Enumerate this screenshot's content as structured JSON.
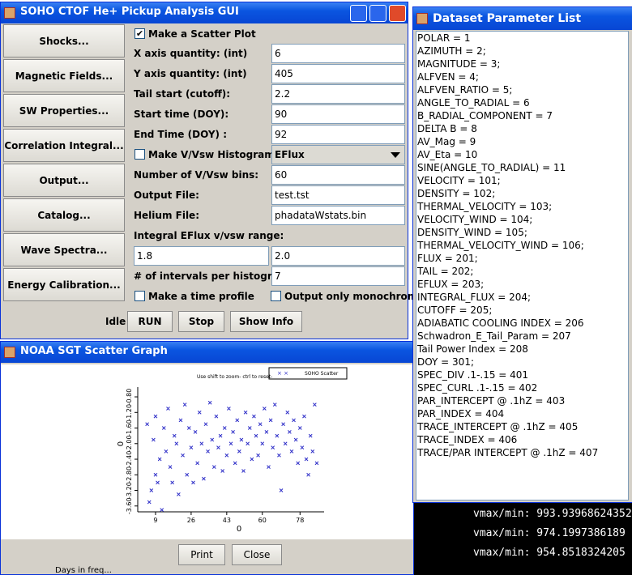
{
  "main_window": {
    "title": "SOHO CTOF He+ Pickup Analysis GUI",
    "side_buttons": [
      "Shocks...",
      "Magnetic Fields...",
      "SW Properties...",
      "Correlation Integral...",
      "Output...",
      "Catalog...",
      "Wave Spectra...",
      "Energy Calibration..."
    ],
    "scatter_checkbox": "Make a Scatter Plot",
    "fields_top": [
      {
        "label": "X axis quantity: (int)",
        "value": "6"
      },
      {
        "label": "Y axis quantity: (int)",
        "value": "405"
      },
      {
        "label": "Tail start (cutoff):",
        "value": "2.2"
      },
      {
        "label": "Start time (DOY):",
        "value": "90"
      },
      {
        "label": "End Time (DOY) :",
        "value": "92"
      }
    ],
    "histogram_checkbox": "Make V/Vsw Histogram",
    "histogram_dropdown": "EFlux",
    "fields_mid": [
      {
        "label": "Number of V/Vsw bins:",
        "value": "60"
      },
      {
        "label": "Output File:",
        "value": "test.tst"
      },
      {
        "label": "Helium File:",
        "value": "phadataWstats.bin"
      }
    ],
    "range_label": "Integral EFlux v/vsw range:",
    "range_values": [
      "1.8",
      "2.0"
    ],
    "intervals": {
      "label": "# of intervals per histogram:",
      "value": "7"
    },
    "time_profile_checkbox": "Make a time profile",
    "monochrome_checkbox": "Output only monochrome",
    "status": "Idle",
    "action_buttons": [
      "RUN",
      "Stop",
      "Show Info"
    ]
  },
  "scatter_window": {
    "title": "NOAA SGT Scatter Graph",
    "hint": "Use shift to zoom- ctrl to reset-",
    "legend": "SOHO Scatter",
    "x_label": "0",
    "y_label": "0",
    "xlim": [
      0.5,
      89.5
    ],
    "ylim": [
      -3.75,
      -0.55
    ],
    "xticks": [
      9,
      26,
      43,
      60,
      78
    ],
    "yticks": [
      {
        "value": -0.8,
        "label": "-0.80"
      },
      {
        "value": -1.2,
        "label": "-1.20"
      },
      {
        "value": -1.6,
        "label": "-1.60"
      },
      {
        "value": -2.0,
        "label": "-2.00"
      },
      {
        "value": -2.4,
        "label": "-2.40"
      },
      {
        "value": -2.8,
        "label": "-2.80"
      },
      {
        "value": -3.2,
        "label": "-3.20"
      },
      {
        "value": -3.6,
        "label": "-3.60"
      }
    ],
    "color": "#2f2fc8",
    "x": [
      5,
      6,
      7,
      8,
      9,
      9,
      10,
      11,
      12,
      13,
      14,
      15,
      16,
      17,
      18,
      19,
      20,
      21,
      22,
      23,
      24,
      25,
      26,
      27,
      28,
      29,
      30,
      31,
      32,
      33,
      34,
      35,
      36,
      37,
      38,
      39,
      40,
      41,
      42,
      43,
      44,
      45,
      46,
      47,
      48,
      49,
      50,
      51,
      52,
      53,
      54,
      55,
      56,
      57,
      58,
      59,
      60,
      61,
      62,
      63,
      64,
      65,
      66,
      67,
      68,
      69,
      70,
      71,
      72,
      73,
      74,
      75,
      76,
      77,
      78,
      79,
      80,
      81,
      82,
      83,
      84,
      85,
      86
    ],
    "y": [
      -1.5,
      -3.5,
      -3.2,
      -1.9,
      -2.8,
      -1.3,
      -3.0,
      -2.4,
      -3.7,
      -1.6,
      -2.2,
      -1.1,
      -2.6,
      -3.0,
      -1.8,
      -2.0,
      -3.3,
      -1.4,
      -2.3,
      -1.0,
      -2.8,
      -1.6,
      -2.1,
      -3.0,
      -1.7,
      -2.5,
      -1.2,
      -2.0,
      -2.9,
      -1.5,
      -2.2,
      -0.95,
      -1.9,
      -2.6,
      -1.3,
      -2.1,
      -1.8,
      -2.7,
      -1.6,
      -2.3,
      -1.1,
      -2.0,
      -1.7,
      -2.5,
      -1.4,
      -2.2,
      -1.9,
      -2.7,
      -1.2,
      -2.0,
      -1.6,
      -2.4,
      -1.3,
      -1.8,
      -2.3,
      -1.5,
      -2.0,
      -1.1,
      -1.7,
      -2.6,
      -1.4,
      -2.1,
      -1.0,
      -1.8,
      -2.3,
      -3.2,
      -1.5,
      -2.0,
      -1.2,
      -1.7,
      -2.2,
      -1.4,
      -1.9,
      -2.5,
      -1.6,
      -2.1,
      -1.3,
      -2.4,
      -2.8,
      -1.8,
      -2.2,
      -1.0,
      -2.5
    ],
    "buttons": [
      "Print",
      "Close"
    ]
  },
  "parameter_window": {
    "title": "Dataset Parameter List",
    "items": [
      "POLAR = 1",
      "AZIMUTH = 2;",
      "MAGNITUDE = 3;",
      "ALFVEN = 4;",
      "ALFVEN_RATIO = 5;",
      "ANGLE_TO_RADIAL = 6",
      "B_RADIAL_COMPONENT = 7",
      "DELTA B = 8",
      "AV_Mag = 9",
      "AV_Eta = 10",
      "SINE(ANGLE_TO_RADIAL) = 11",
      "VELOCITY = 101;",
      "DENSITY = 102;",
      "THERMAL_VELOCITY = 103;",
      "VELOCITY_WIND = 104;",
      "DENSITY_WIND = 105;",
      "THERMAL_VELOCITY_WIND = 106;",
      "FLUX = 201;",
      "TAIL = 202;",
      "EFLUX = 203;",
      "INTEGRAL_FLUX = 204;",
      "CUTOFF = 205;",
      "ADIABATIC COOLING INDEX = 206",
      "Schwadron_E_Tail_Param = 207",
      "Tail Power Index = 208",
      "DOY = 301;",
      "SPEC_DIV .1-.15 = 401",
      "SPEC_CURL .1-.15 = 402",
      "PAR_INTERCEPT @ .1hZ = 403",
      "PAR_INDEX = 404",
      "TRACE_INTERCEPT @ .1hZ = 405",
      "TRACE_INDEX = 406",
      "TRACE/PAR INTERCEPT @ .1hZ = 407"
    ]
  },
  "terminal": {
    "lines": [
      "vmax/min: 993.93968624352",
      "vmax/min: 974.1997386189",
      "vmax/min: 954.8518324205"
    ],
    "footer": "Days in freq..."
  }
}
